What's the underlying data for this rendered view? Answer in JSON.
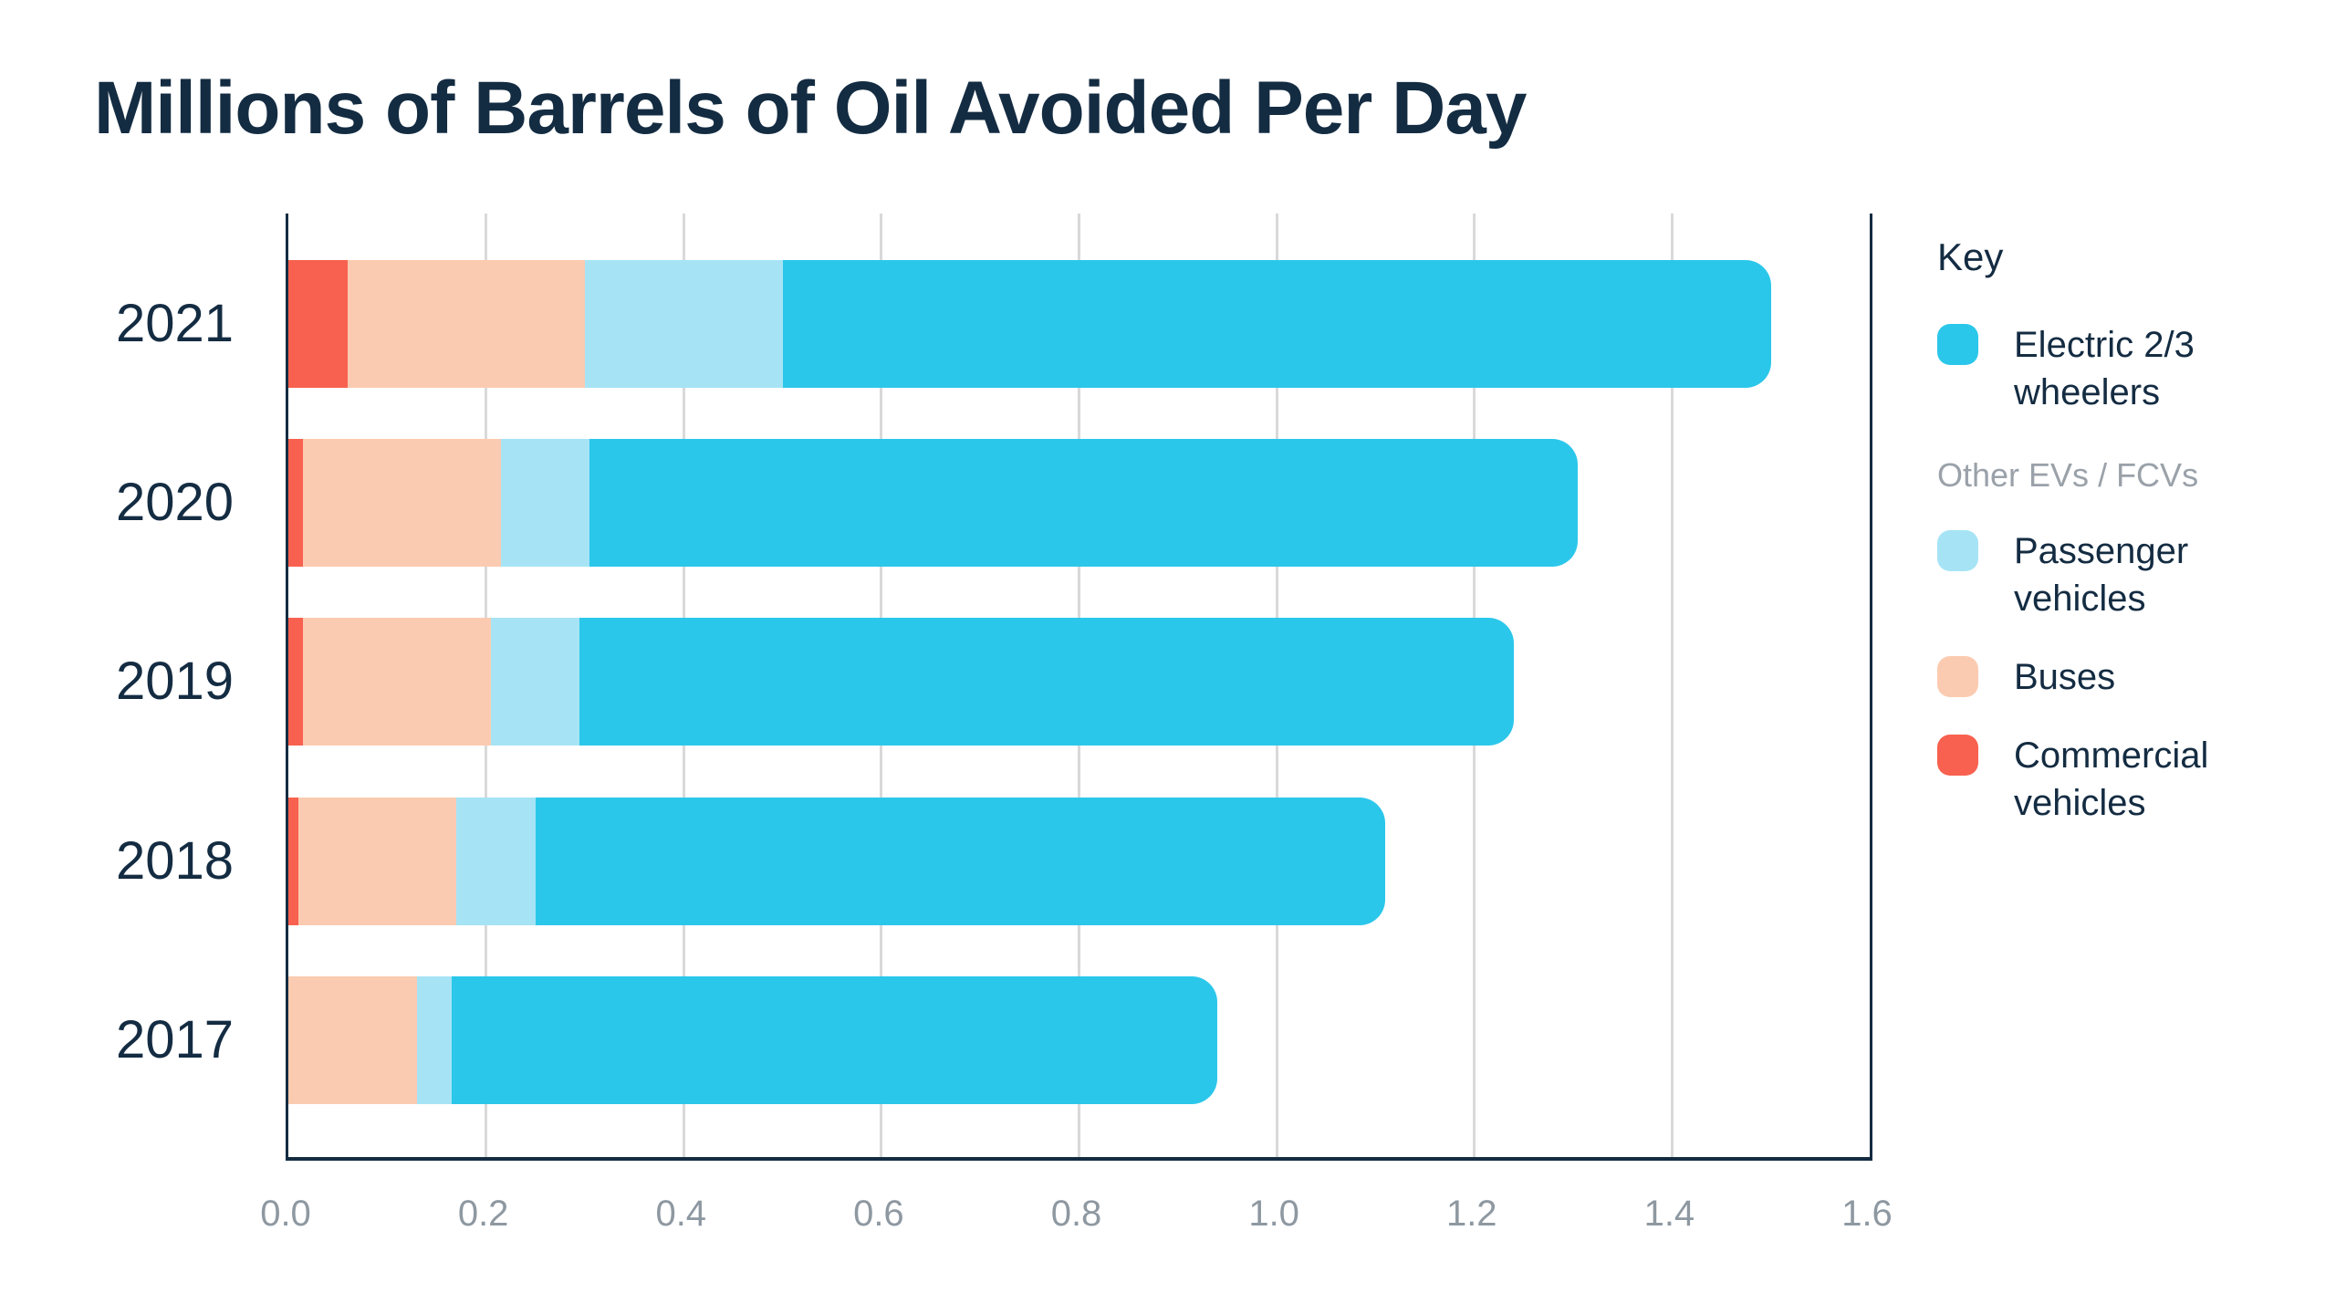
{
  "title": "Millions of Barrels of Oil Avoided Per Day",
  "chart_data": {
    "type": "bar",
    "orientation": "horizontal",
    "stacked": true,
    "title": "Millions of Barrels of Oil Avoided Per Day",
    "categories": [
      "2021",
      "2020",
      "2019",
      "2018",
      "2017"
    ],
    "series": [
      {
        "name": "Commercial vehicles",
        "color": "#F8614F",
        "values": [
          0.06,
          0.015,
          0.015,
          0.01,
          0
        ]
      },
      {
        "name": "Buses",
        "color": "#FBCBB1",
        "values": [
          0.24,
          0.2,
          0.19,
          0.16,
          0.13
        ]
      },
      {
        "name": "Passenger vehicles",
        "color": "#A6E4F5",
        "values": [
          0.2,
          0.09,
          0.09,
          0.08,
          0.035
        ]
      },
      {
        "name": "Electric 2/3 wheelers",
        "color": "#2BC7EA",
        "values": [
          1.0,
          1.0,
          0.945,
          0.86,
          0.775
        ]
      }
    ],
    "totals": [
      1.5,
      1.305,
      1.24,
      1.11,
      0.94
    ],
    "xlabel": "",
    "ylabel": "",
    "xlim": [
      0,
      1.6
    ],
    "xticks": [
      0.0,
      0.2,
      0.4,
      0.6,
      0.8,
      1.0,
      1.2,
      1.4,
      1.6
    ],
    "xtick_labels": [
      "0.0",
      "0.2",
      "0.4",
      "0.6",
      "0.8",
      "1.0",
      "1.2",
      "1.4",
      "1.6"
    ],
    "grid": "vertical-gridlines-on",
    "legend_position": "right"
  },
  "legend": {
    "title": "Key",
    "primary_item": {
      "label": "Electric 2/3 wheelers",
      "color": "#2BC7EA"
    },
    "group_label": "Other EVs / FCVs",
    "group_items": [
      {
        "label": "Passenger vehicles",
        "color": "#A6E4F5"
      },
      {
        "label": "Buses",
        "color": "#FBCBB1"
      },
      {
        "label": "Commercial vehicles",
        "color": "#F8614F"
      }
    ]
  },
  "colors": {
    "title_text": "#142C42",
    "axis_border": "#142C42",
    "gridline": "#D9D9D9",
    "tick_text": "#8E98A1",
    "legend_group_text": "#9AA1A9",
    "background": "#FFFFFF"
  }
}
